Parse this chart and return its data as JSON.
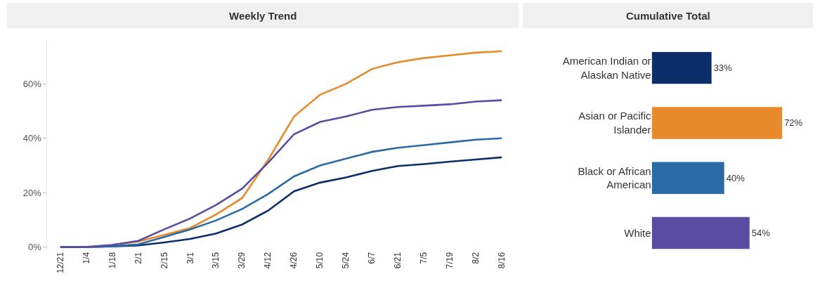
{
  "chart_data": [
    {
      "type": "line",
      "title": "Weekly Trend",
      "categories": [
        "12/21",
        "1/4",
        "1/18",
        "2/1",
        "2/15",
        "3/1",
        "3/15",
        "3/29",
        "4/12",
        "4/26",
        "5/10",
        "5/24",
        "6/7",
        "6/21",
        "7/5",
        "7/19",
        "8/2",
        "8/16"
      ],
      "series": [
        {
          "color": "#0b2e6b",
          "values": [
            0,
            0,
            0.2,
            0.6,
            1.7,
            3,
            5,
            8.3,
            13.4,
            20.5,
            23.7,
            25.6,
            28,
            29.8,
            30.5,
            31.4,
            32.2,
            33
          ]
        },
        {
          "color": "#e8892b",
          "values": [
            null,
            null,
            0.8,
            2,
            4.5,
            7,
            12,
            18,
            32,
            48,
            56,
            60,
            65.5,
            68,
            69.5,
            70.5,
            71.5,
            72
          ]
        },
        {
          "color": "#2a6aa5",
          "values": [
            0,
            0,
            0.3,
            1,
            3.7,
            6.5,
            9.8,
            14,
            19.5,
            26,
            30,
            32.5,
            35,
            36.5,
            37.5,
            38.5,
            39.5,
            40
          ]
        },
        {
          "color": "#5a4ba3",
          "values": [
            0,
            0.1,
            0.8,
            2.3,
            6.5,
            10.5,
            15.5,
            21.5,
            31,
            41.5,
            46,
            48,
            50.5,
            51.5,
            52,
            52.5,
            53.5,
            54
          ]
        }
      ],
      "ylim": [
        -1,
        76
      ],
      "yticks": [
        {
          "value": 0,
          "label": "0%"
        },
        {
          "value": 20,
          "label": "20%"
        },
        {
          "value": 40,
          "label": "40%"
        },
        {
          "value": 60,
          "label": "60%"
        }
      ],
      "marker": "none",
      "line_style": "solid"
    },
    {
      "type": "bar",
      "title": "Cumulative Total",
      "orientation": "horizontal",
      "categories": [
        "American Indian or Alaskan Native",
        "Asian or Pacific Islander",
        "Black or African American",
        "White"
      ],
      "values": [
        33,
        72,
        40,
        54
      ],
      "colors": [
        "#0b2e6b",
        "#e8892b",
        "#2a6aa5",
        "#5a4ba3"
      ],
      "value_labels": [
        "33%",
        "72%",
        "40%",
        "54%"
      ]
    }
  ]
}
